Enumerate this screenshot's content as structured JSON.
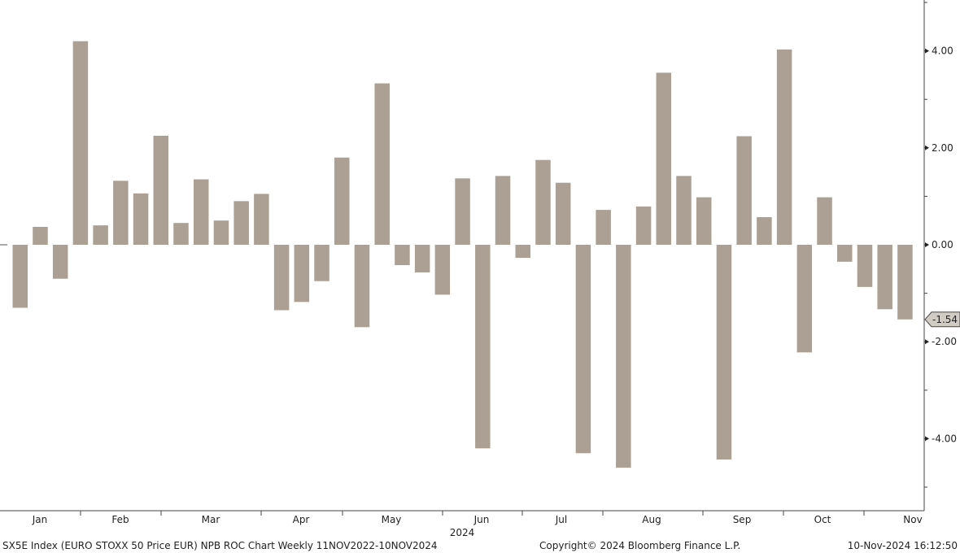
{
  "chart_data": {
    "type": "bar",
    "x_month_labels": [
      "Jan",
      "Feb",
      "Mar",
      "Apr",
      "May",
      "Jun",
      "Jul",
      "Aug",
      "Sep",
      "Oct",
      "Nov"
    ],
    "year_label": "2024",
    "values": [
      -1.3,
      0.37,
      -0.7,
      4.2,
      0.4,
      1.32,
      1.06,
      2.25,
      0.45,
      1.35,
      0.5,
      0.9,
      1.05,
      -1.35,
      -1.18,
      -0.75,
      1.8,
      -1.7,
      3.33,
      -0.42,
      -0.57,
      -1.03,
      1.37,
      -4.2,
      1.42,
      -0.27,
      1.75,
      1.28,
      -4.3,
      0.72,
      -4.6,
      0.79,
      3.55,
      1.42,
      0.98,
      -4.43,
      2.24,
      0.57,
      4.03,
      -2.22,
      0.98,
      -0.35,
      -0.87,
      -1.33,
      -1.54
    ],
    "yticks": [
      "4.00",
      "2.00",
      "0.00",
      "-2.00",
      "-4.00"
    ],
    "ytick_values": [
      4,
      2,
      0,
      -2,
      -4
    ],
    "ylim": [
      -5.4,
      5.0
    ],
    "last_value_label": "-1.54",
    "bar_color": "#aba093",
    "grid": false,
    "legend": "none"
  },
  "footer": {
    "left": "SX5E Index (EURO STOXX 50 Price EUR) NPB ROC Chart  Weekly 11NOV2022-10NOV2024",
    "middle": "Copyright© 2024 Bloomberg Finance L.P.",
    "right": "10-Nov-2024 16:12:50"
  }
}
